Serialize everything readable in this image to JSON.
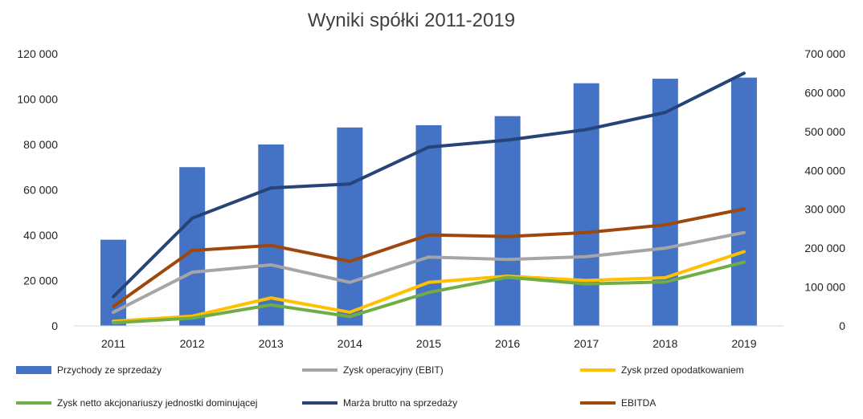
{
  "chart_data": {
    "type": "bar",
    "title": "Wyniki spółki 2011-2019",
    "categories": [
      "2011",
      "2012",
      "2013",
      "2014",
      "2015",
      "2016",
      "2017",
      "2018",
      "2019"
    ],
    "left_axis": {
      "range": [
        0,
        120000
      ],
      "ticks": [
        0,
        20000,
        40000,
        60000,
        80000,
        100000,
        120000
      ],
      "tick_labels": [
        "0",
        "20 000",
        "40 000",
        "60 000",
        "80 000",
        "100 000",
        "120 000"
      ]
    },
    "right_axis": {
      "range": [
        0,
        700000
      ],
      "ticks": [
        0,
        100000,
        200000,
        300000,
        400000,
        500000,
        600000,
        700000
      ],
      "tick_labels": [
        "0",
        "100 000",
        "200 000",
        "300 000",
        "400 000",
        "500 000",
        "600 000",
        "700 000"
      ]
    },
    "grid": false,
    "legend_position": "bottom",
    "series": [
      {
        "name": "Przychody ze sprzedaży",
        "type": "bar",
        "axis": "left",
        "color": "#4472C4",
        "values": [
          38000,
          70000,
          80000,
          87500,
          88500,
          92500,
          107000,
          109000,
          109500
        ]
      },
      {
        "name": "Zysk operacyjny (EBIT)",
        "type": "line",
        "axis": "right",
        "color": "#A5A5A5",
        "values": [
          35000,
          138000,
          157000,
          112000,
          177000,
          171000,
          178000,
          200000,
          240000
        ]
      },
      {
        "name": "Zysk przed opodatkowaniem",
        "type": "line",
        "axis": "right",
        "color": "#FFC000",
        "values": [
          12000,
          25000,
          72000,
          35000,
          112000,
          128000,
          117000,
          124000,
          191000
        ]
      },
      {
        "name": "Zysk netto akcjonariuszy jednostki dominującej",
        "type": "line",
        "axis": "right",
        "color": "#70AD47",
        "values": [
          8000,
          20000,
          54000,
          24000,
          86000,
          125000,
          108000,
          113000,
          164000
        ]
      },
      {
        "name": "Marża brutto na sprzedaży",
        "type": "line",
        "axis": "right",
        "color": "#264478",
        "values": [
          75000,
          277000,
          355000,
          365000,
          460000,
          478000,
          505000,
          549000,
          650000
        ]
      },
      {
        "name": "EBITDA",
        "type": "line",
        "axis": "right",
        "color": "#9E480E",
        "values": [
          50000,
          194000,
          207000,
          166000,
          234000,
          230000,
          240000,
          260000,
          301000
        ]
      }
    ]
  }
}
